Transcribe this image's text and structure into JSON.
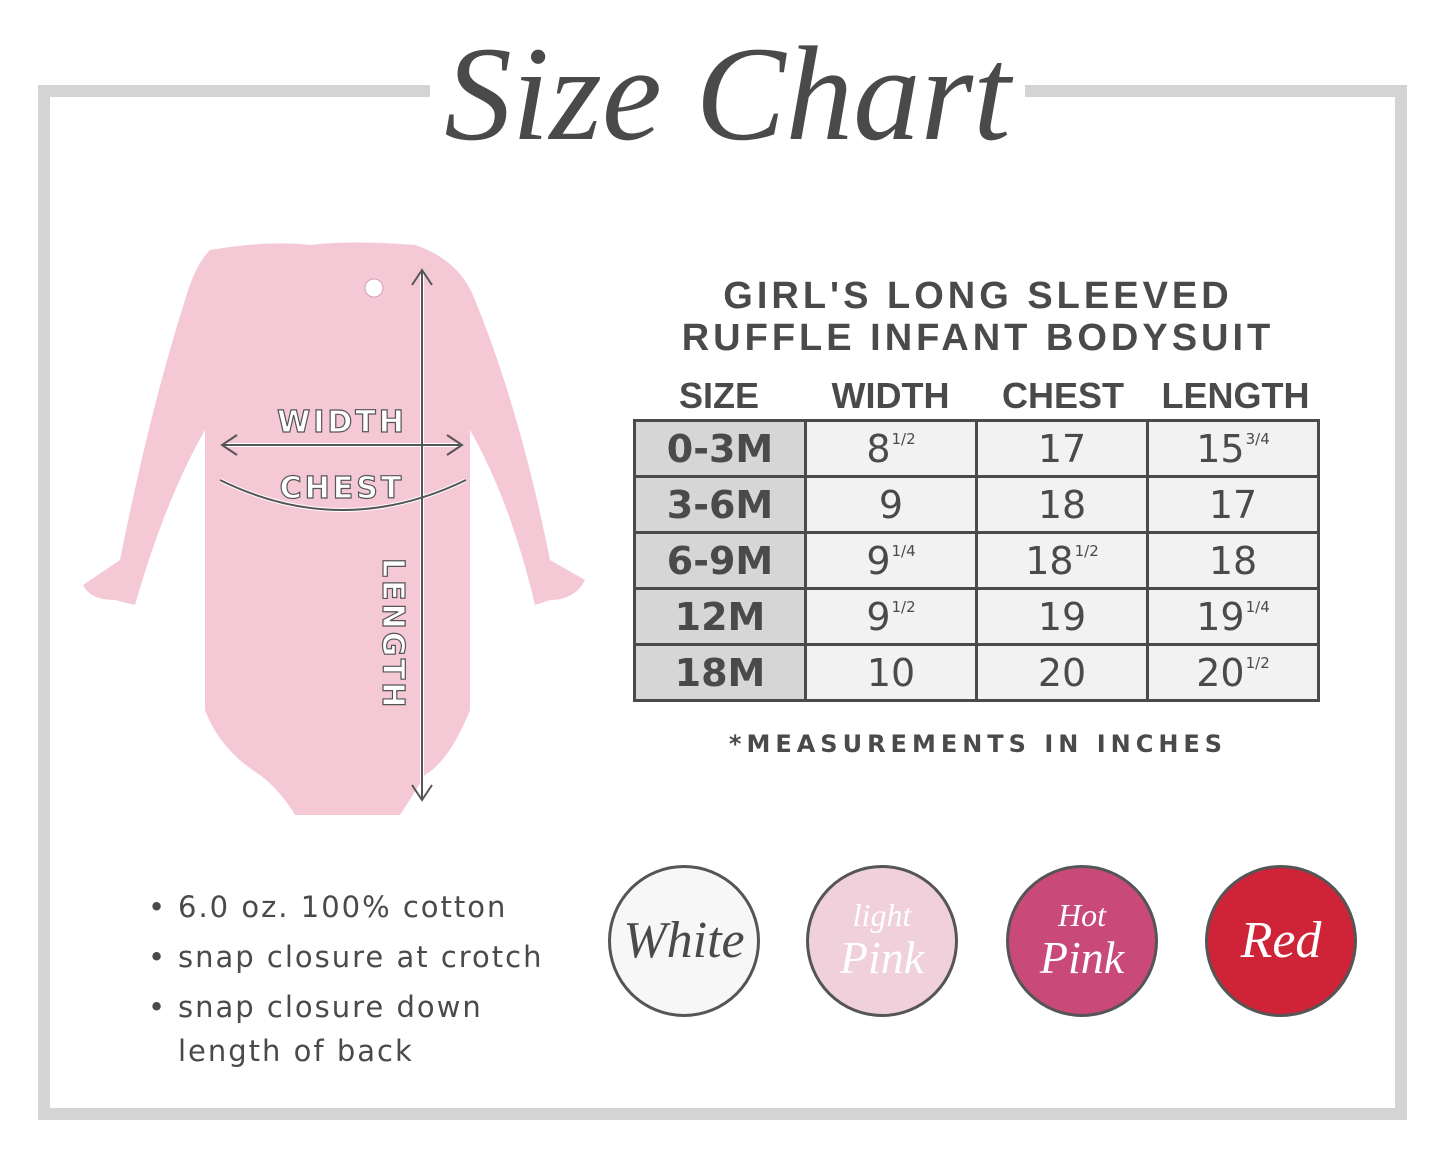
{
  "title": "Size Chart",
  "product_title": [
    "GIRL'S LONG SLEEVED",
    "RUFFLE INFANT BODYSUIT"
  ],
  "diagram_labels": {
    "width": "WIDTH",
    "chest": "CHEST",
    "length": "LENGTH"
  },
  "table": {
    "headers": [
      "SIZE",
      "WIDTH",
      "CHEST",
      "LENGTH"
    ],
    "rows": [
      [
        {
          "w": "0-3M"
        },
        {
          "w": "8",
          "f": "1/2"
        },
        {
          "w": "17",
          "f": ""
        },
        {
          "w": "15",
          "f": "3/4"
        }
      ],
      [
        {
          "w": "3-6M"
        },
        {
          "w": "9",
          "f": ""
        },
        {
          "w": "18",
          "f": ""
        },
        {
          "w": "17",
          "f": ""
        }
      ],
      [
        {
          "w": "6-9M"
        },
        {
          "w": "9",
          "f": "1/4"
        },
        {
          "w": "18",
          "f": "1/2"
        },
        {
          "w": "18",
          "f": ""
        }
      ],
      [
        {
          "w": "12M"
        },
        {
          "w": "9",
          "f": "1/2"
        },
        {
          "w": "19",
          "f": ""
        },
        {
          "w": "19",
          "f": "1/4"
        }
      ],
      [
        {
          "w": "18M"
        },
        {
          "w": "10",
          "f": ""
        },
        {
          "w": "20",
          "f": ""
        },
        {
          "w": "20",
          "f": "1/2"
        }
      ]
    ]
  },
  "note": "*MEASUREMENTS IN INCHES",
  "features": [
    "6.0 oz. 100% cotton",
    "snap closure at crotch",
    "snap closure down",
    "length of back"
  ],
  "colors": [
    {
      "label_top": "",
      "label": "White",
      "fill": "#f7f7f7",
      "text_color": "#4a4a4a"
    },
    {
      "label_top": "light",
      "label": "Pink",
      "fill": "#f0d0da",
      "text_color": "#ffffff"
    },
    {
      "label_top": "Hot",
      "label": "Pink",
      "fill": "#c94a78",
      "text_color": "#ffffff"
    },
    {
      "label_top": "",
      "label": "Red",
      "fill": "#cf2438",
      "text_color": "#ffffff"
    }
  ],
  "garment_color": "#f5c8d5"
}
